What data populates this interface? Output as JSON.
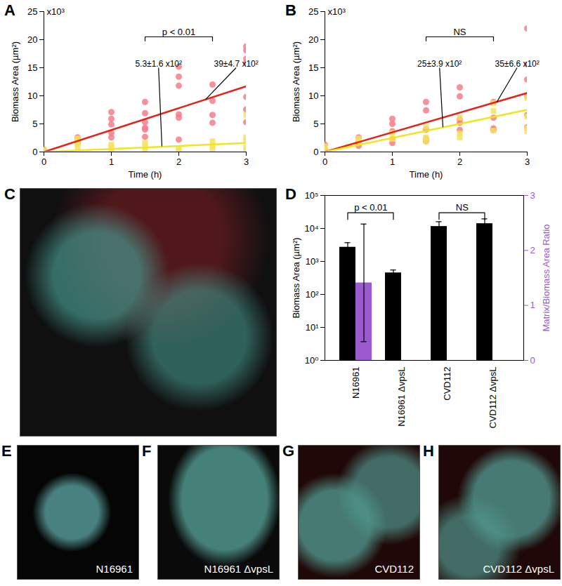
{
  "chart_data": [
    {
      "type": "scatter",
      "title": "A",
      "x_label": "Time (h)",
      "y_label": "Biomass Area (µm²)",
      "xlim": [
        0,
        3
      ],
      "xticks": [
        0,
        1,
        2,
        3
      ],
      "ylim": [
        0,
        25
      ],
      "yticks": [
        0,
        5,
        10,
        15,
        20,
        25
      ],
      "series": [
        {
          "color": "#f47c8a",
          "marker": "circle",
          "x": [
            0,
            0,
            0.5,
            0.5,
            0.5,
            1,
            1,
            1,
            1,
            1,
            1.5,
            1.5,
            1.5,
            1.5,
            1.5,
            1.5,
            2,
            2,
            2,
            2,
            2,
            2,
            2.5,
            2.5,
            2.5,
            2.5,
            3,
            3,
            3,
            3,
            3,
            3,
            3
          ],
          "values": [
            0.2,
            0.4,
            2.6,
            2.1,
            1.6,
            7.1,
            5.9,
            4.9,
            3.4,
            2.6,
            8.9,
            6.9,
            5.3,
            4.3,
            4.0,
            2.7,
            15.2,
            13.4,
            11.8,
            6.7,
            6.1,
            2.2,
            12.0,
            9.1,
            6.6,
            5.2,
            18.8,
            18.1,
            16.6,
            15.9,
            9.8,
            7.6,
            5.3
          ]
        },
        {
          "color": "#f3e35a",
          "marker": "square",
          "x": [
            0,
            0,
            0.5,
            0.5,
            0.5,
            0.5,
            1,
            1,
            1,
            1,
            1.5,
            1.5,
            1.5,
            2,
            2,
            2.5,
            2.5,
            2.5,
            3,
            3,
            3,
            3,
            3
          ],
          "values": [
            0.1,
            0.3,
            2.4,
            1.9,
            1.5,
            0.8,
            1.3,
            0.8,
            0.3,
            0.1,
            1.6,
            1.0,
            0.3,
            0.6,
            0.3,
            1.9,
            1.1,
            0.5,
            6.6,
            2.6,
            1.9,
            0.8,
            0.2
          ]
        },
        {
          "type": "line",
          "color": "#e4231b",
          "x": [
            0,
            3
          ],
          "values": [
            0,
            11.7
          ]
        },
        {
          "type": "line",
          "color": "#f1e51e",
          "x": [
            0,
            3
          ],
          "values": [
            0,
            1.6
          ]
        }
      ],
      "annotations": [
        {
          "text": "x10³",
          "x": 0,
          "y": 25
        },
        {
          "text": "p < 0.01",
          "x": [
            1.5,
            2.5
          ],
          "y": 20.5
        },
        {
          "text": "5.3±1.6 x10²",
          "x": 1.7,
          "y": 15,
          "line_to": [
            1.75,
            1.0
          ]
        },
        {
          "text": "39±4.7 x10²",
          "x": 2.85,
          "y": 15,
          "line_to": [
            2.4,
            9.4
          ]
        }
      ]
    },
    {
      "type": "scatter",
      "title": "B",
      "x_label": "Time (h)",
      "y_label": "Biomass Area (µm²)",
      "xlim": [
        0,
        3
      ],
      "xticks": [
        0,
        1,
        2,
        3
      ],
      "ylim": [
        0,
        25
      ],
      "yticks": [
        0,
        5,
        10,
        15,
        20,
        25
      ],
      "series": [
        {
          "color": "#f47c8a",
          "marker": "circle",
          "x": [
            0,
            0,
            0.5,
            0.5,
            0.5,
            1,
            1,
            1,
            1,
            1,
            1.5,
            1.5,
            1.5,
            1.5,
            1.5,
            2,
            2,
            2,
            2,
            2,
            2.5,
            2.5,
            2.5,
            2.5,
            3,
            3,
            3,
            3,
            3,
            3
          ],
          "values": [
            0.5,
            1.3,
            2.6,
            1.9,
            1.1,
            5.9,
            5.0,
            3.7,
            2.3,
            1.6,
            8.9,
            7.4,
            4.0,
            2.3,
            1.9,
            11.5,
            9.9,
            5.8,
            5.2,
            3.9,
            8.9,
            6.1,
            4.2,
            3.9,
            22.0,
            15.6,
            12.9,
            9.9,
            6.6,
            4.4
          ]
        },
        {
          "color": "#f3e35a",
          "marker": "square",
          "x": [
            0,
            0,
            0.5,
            0.5,
            1,
            1,
            1.5,
            1.5,
            1.5,
            2,
            2,
            2,
            2.5,
            2.5,
            2.5,
            3,
            3,
            3,
            3
          ],
          "values": [
            1.0,
            0.3,
            2.4,
            1.9,
            3.4,
            2.3,
            4.5,
            2.6,
            1.9,
            6.1,
            3.3,
            2.6,
            8.7,
            7.3,
            3.8,
            9.6,
            6.3,
            4.2,
            3.7
          ]
        },
        {
          "type": "line",
          "color": "#e4231b",
          "x": [
            0,
            3
          ],
          "values": [
            0,
            10.5
          ]
        },
        {
          "type": "line",
          "color": "#f1e51e",
          "x": [
            0,
            3
          ],
          "values": [
            0,
            7.5
          ]
        }
      ],
      "annotations": [
        {
          "text": "x10³",
          "x": 0,
          "y": 25
        },
        {
          "text": "NS",
          "x": [
            1.5,
            2.5
          ],
          "y": 20.5
        },
        {
          "text": "25±3.9 x10²",
          "x": 1.7,
          "y": 15,
          "line_to": [
            1.75,
            4.4
          ]
        },
        {
          "text": "35±6.6 x10²",
          "x": 2.85,
          "y": 15,
          "line_to": [
            2.55,
            8.9
          ]
        }
      ]
    },
    {
      "type": "bar",
      "title": "D",
      "y_label": "Biomass Area (µm²)",
      "y2_label": "Matrix/Biomass Area Ratio",
      "log": "y",
      "categories": [
        "N16961",
        "N16961 ΔvpsL",
        "CVD112",
        "CVD112 ΔvpsL"
      ],
      "ylim": [
        1,
        100000
      ],
      "yticks": [
        {
          "value": 1,
          "label": "10⁰"
        },
        {
          "value": 10,
          "label": "10¹"
        },
        {
          "value": 100,
          "label": "10²"
        },
        {
          "value": 1000,
          "label": "10³"
        },
        {
          "value": 10000,
          "label": "10⁴"
        },
        {
          "value": 100000,
          "label": "10⁵"
        }
      ],
      "y2lim": [
        0,
        3
      ],
      "y2ticks": [
        0,
        1,
        2,
        3
      ],
      "series": [
        {
          "color": "#000000",
          "values": [
            2700,
            450,
            11500,
            14000
          ],
          "errors": [
            1000,
            100,
            4500,
            5500
          ]
        },
        {
          "color": "#9b59d0",
          "axis": "y2",
          "values": [
            1.41,
            0,
            0,
            0
          ],
          "errors": [
            1.07,
            0,
            0,
            0
          ]
        }
      ],
      "annotations": [
        {
          "text": "p < 0.01",
          "x": [
            "N16961",
            "N16961 ΔvpsL"
          ],
          "y": 30000
        },
        {
          "text": "NS",
          "x": [
            "CVD112",
            "CVD112 ΔvpsL"
          ],
          "y": 30000
        }
      ]
    }
  ],
  "images": [
    {
      "panel": "C"
    },
    {
      "panel": "E",
      "label": "N16961"
    },
    {
      "panel": "F",
      "label": "N16961 ΔvpsL"
    },
    {
      "panel": "G",
      "label": "CVD112"
    },
    {
      "panel": "H",
      "label": "CVD112 ΔvpsL"
    }
  ]
}
